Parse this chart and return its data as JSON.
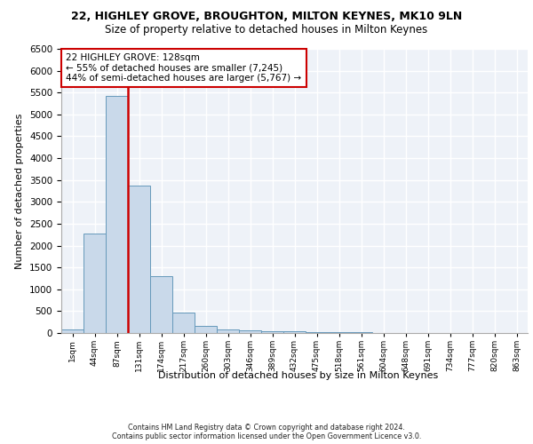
{
  "title1": "22, HIGHLEY GROVE, BROUGHTON, MILTON KEYNES, MK10 9LN",
  "title2": "Size of property relative to detached houses in Milton Keynes",
  "xlabel": "Distribution of detached houses by size in Milton Keynes",
  "ylabel": "Number of detached properties",
  "footer1": "Contains HM Land Registry data © Crown copyright and database right 2024.",
  "footer2": "Contains public sector information licensed under the Open Government Licence v3.0.",
  "annotation_line1": "22 HIGHLEY GROVE: 128sqm",
  "annotation_line2": "← 55% of detached houses are smaller (7,245)",
  "annotation_line3": "44% of semi-detached houses are larger (5,767) →",
  "bar_color": "#c9d9ea",
  "bar_edge_color": "#6699bb",
  "vline_color": "#cc0000",
  "vline_position": 2.5,
  "bin_labels": [
    "1sqm",
    "44sqm",
    "87sqm",
    "131sqm",
    "174sqm",
    "217sqm",
    "260sqm",
    "303sqm",
    "346sqm",
    "389sqm",
    "432sqm",
    "475sqm",
    "518sqm",
    "561sqm",
    "604sqm",
    "648sqm",
    "691sqm",
    "734sqm",
    "777sqm",
    "820sqm",
    "863sqm"
  ],
  "bar_heights": [
    75,
    2280,
    5430,
    3380,
    1310,
    475,
    160,
    90,
    65,
    45,
    35,
    25,
    20,
    15,
    10,
    8,
    5,
    4,
    3,
    2,
    0
  ],
  "ylim_max": 6500,
  "background_color": "#eef2f8",
  "grid_color": "#ffffff"
}
